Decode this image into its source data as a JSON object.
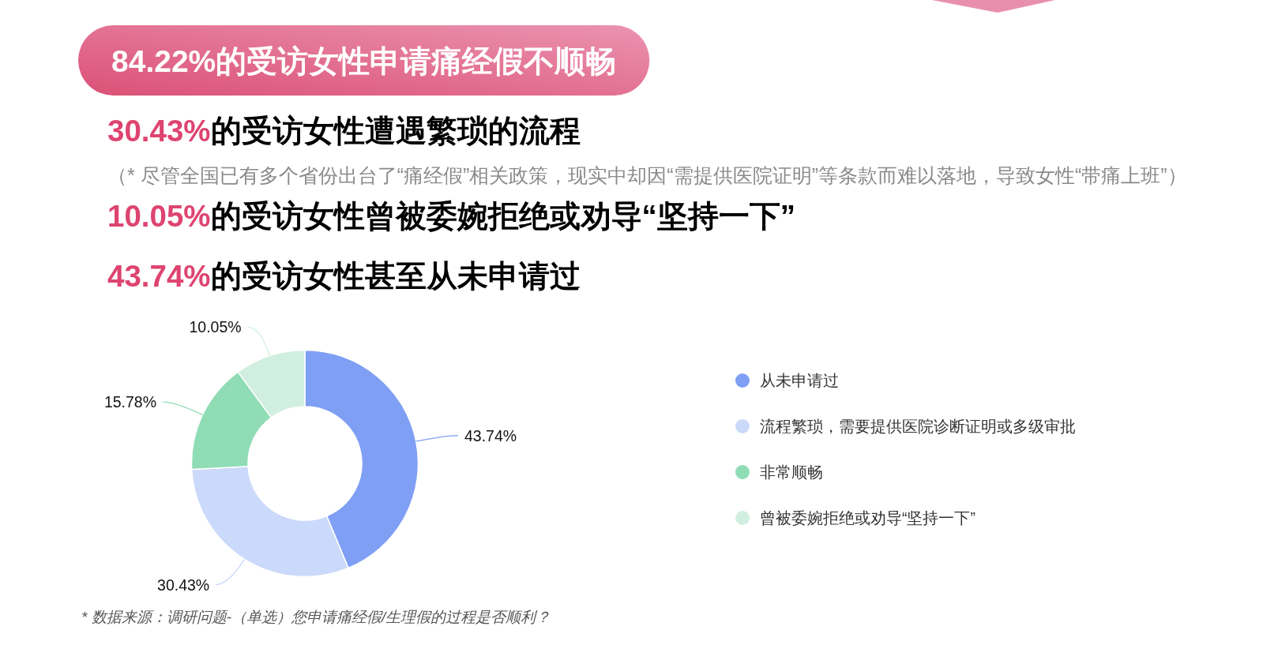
{
  "chart_data": {
    "type": "donut",
    "title": "84.22%的受访女性申请痛经假不顺畅",
    "annotations": [
      "**30.43%**的受访女性遭遇繁琐的流程",
      "（* 尽管全国已有多个省份出台了“痛经假”相关政策，现实中却因“需提供医院证明”等条款而难以落地，导致女性“带痛上班”）",
      "**10.05%**的受访女性曾被委婉拒绝或劝导“坚持一下”",
      "**43.74%**的受访女性甚至从未申请过",
      "* 数据来源：调研问题-（单选）您申请痛经假/生理假的过程是否顺利？"
    ],
    "categories": [
      "从未申请过",
      "流程繁琐，需要提供医院诊断证明或多级审批",
      "非常顺畅",
      "曾被委婉拒绝或劝导“坚持一下”"
    ],
    "values": [
      43.74,
      30.43,
      15.78,
      10.05
    ],
    "colors": [
      "#7f9ff5",
      "#cbd9fa",
      "#8fdcb5",
      "#d1efe1"
    ],
    "value_labels": [
      "43.74%",
      "30.43%",
      "15.78%",
      "10.05%"
    ],
    "legend": "right"
  }
}
